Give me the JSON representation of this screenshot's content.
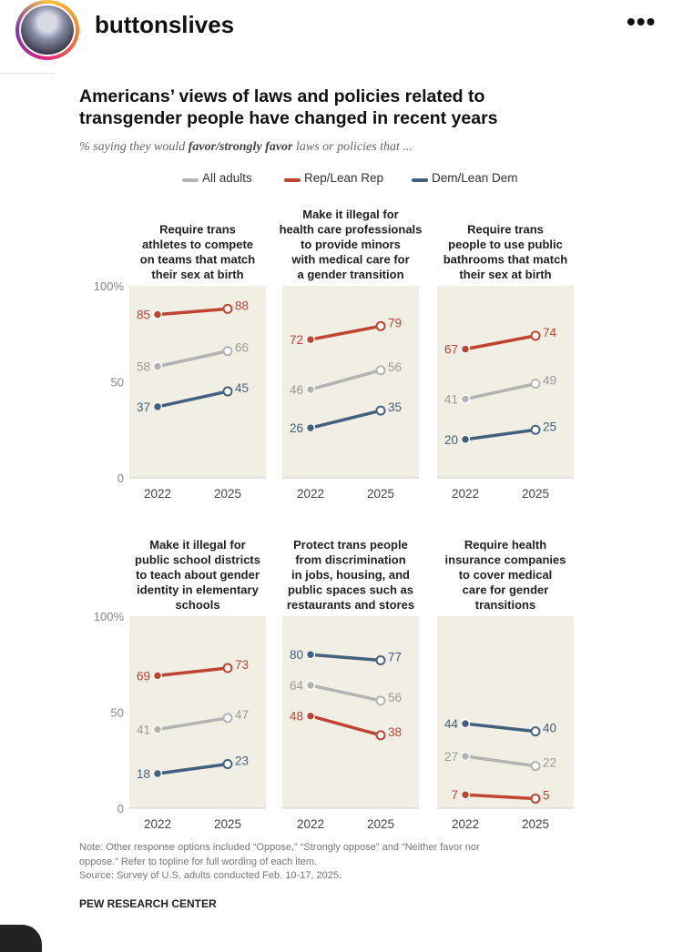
{
  "post": {
    "username": "buttonslives",
    "more_icon": "more-horizontal-icon"
  },
  "figure": {
    "title_line1": "Americans’ views of laws and policies related to",
    "title_line2": "transgender people have changed in recent years",
    "subtitle_prefix": "% saying they would ",
    "subtitle_bold": "favor/strongly favor",
    "subtitle_suffix": " laws or policies that ...",
    "note_line1": "Note: Other response options included “Oppose,” “Strongly oppose” and “Neither favor nor",
    "note_line2": "oppose.” Refer to topline for full wording of each item.",
    "source": "Source: Survey of U.S. adults conducted Feb. 10-17, 2025.",
    "brand": "PEW RESEARCH CENTER"
  },
  "colors": {
    "all_adults": "#b3b3b3",
    "rep": "#bf4432",
    "dem": "#43607e",
    "panel_bg": "#f1efe3"
  },
  "legend": [
    "All adults",
    "Rep/Lean Rep",
    "Dem/Lean Dem"
  ],
  "chart_data": {
    "type": "line",
    "x": [
      "2022",
      "2025"
    ],
    "ylim": [
      0,
      100
    ],
    "y_ticks": [
      "0",
      "50",
      "100%"
    ],
    "series_names": [
      "All adults",
      "Rep/Lean Rep",
      "Dem/Lean Dem"
    ],
    "panels": [
      {
        "title": [
          "Require trans",
          "athletes to compete",
          "on teams that match",
          "their sex at birth"
        ],
        "series": [
          {
            "name": "All adults",
            "values": [
              58,
              66
            ]
          },
          {
            "name": "Rep/Lean Rep",
            "values": [
              85,
              88
            ]
          },
          {
            "name": "Dem/Lean Dem",
            "values": [
              37,
              45
            ]
          }
        ]
      },
      {
        "title": [
          "Make it illegal for",
          "health care professionals",
          "to provide minors",
          "with medical care for",
          "a gender transition"
        ],
        "series": [
          {
            "name": "All adults",
            "values": [
              46,
              56
            ]
          },
          {
            "name": "Rep/Lean Rep",
            "values": [
              72,
              79
            ]
          },
          {
            "name": "Dem/Lean Dem",
            "values": [
              26,
              35
            ]
          }
        ]
      },
      {
        "title": [
          "Require trans",
          "people to use public",
          "bathrooms that match",
          "their sex at birth"
        ],
        "series": [
          {
            "name": "All adults",
            "values": [
              41,
              49
            ]
          },
          {
            "name": "Rep/Lean Rep",
            "values": [
              67,
              74
            ]
          },
          {
            "name": "Dem/Lean Dem",
            "values": [
              20,
              25
            ]
          }
        ]
      },
      {
        "title": [
          "Make it illegal for",
          "public school districts",
          "to teach about gender",
          "identity in elementary",
          "schools"
        ],
        "series": [
          {
            "name": "All adults",
            "values": [
              41,
              47
            ]
          },
          {
            "name": "Rep/Lean Rep",
            "values": [
              69,
              73
            ]
          },
          {
            "name": "Dem/Lean Dem",
            "values": [
              18,
              23
            ]
          }
        ]
      },
      {
        "title": [
          "Protect trans people",
          "from discrimination",
          "in jobs, housing, and",
          "public spaces such as",
          "restaurants and stores"
        ],
        "series": [
          {
            "name": "All adults",
            "values": [
              64,
              56
            ]
          },
          {
            "name": "Rep/Lean Rep",
            "values": [
              48,
              38
            ]
          },
          {
            "name": "Dem/Lean Dem",
            "values": [
              80,
              77
            ]
          }
        ]
      },
      {
        "title": [
          "Require health",
          "insurance companies",
          "to cover medical",
          "care for gender",
          "transitions"
        ],
        "series": [
          {
            "name": "All adults",
            "values": [
              27,
              22
            ]
          },
          {
            "name": "Rep/Lean Rep",
            "values": [
              7,
              5
            ]
          },
          {
            "name": "Dem/Lean Dem",
            "values": [
              44,
              40
            ]
          }
        ]
      }
    ]
  }
}
